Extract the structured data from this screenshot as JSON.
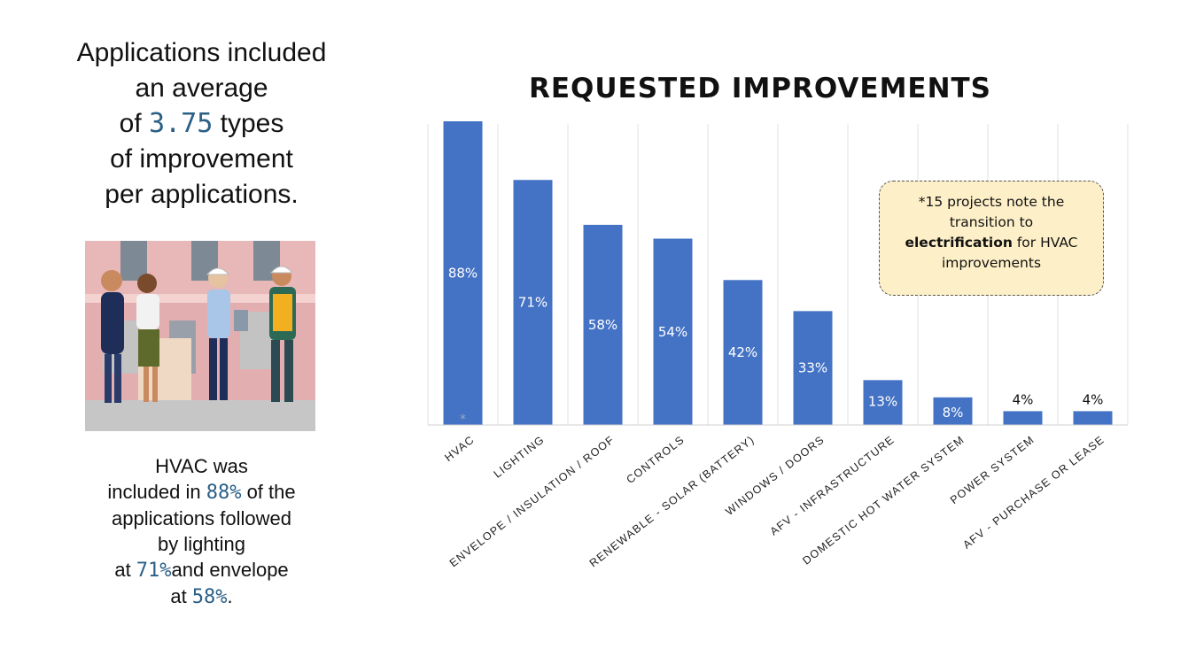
{
  "summary": {
    "line1": "Applications included",
    "line2": "an average",
    "line3_pre": "of ",
    "line3_value": "3.75",
    "line3_post": " types",
    "line4": "of improvement",
    "line5": "per applications."
  },
  "caption": {
    "line1": "HVAC was",
    "line2_pre": "included in ",
    "line2_value": "88%",
    "line2_post": " of the",
    "line3": "applications followed",
    "line4": "by lighting",
    "line5_pre": "at ",
    "line5_value": "71%",
    "line5_post": "and envelope",
    "line6_pre": "at ",
    "line6_value": "58%",
    "line6_post": "."
  },
  "callout": {
    "line1": "*15 projects note the",
    "line2": "transition to",
    "bold": "electrification",
    "line3_post": " for HVAC",
    "line4": "improvements"
  },
  "chart_data": {
    "type": "bar",
    "title": "REQUESTED IMPROVEMENTS",
    "categories": [
      "HVAC",
      "LIGHTING",
      "ENVELOPE / INSULATION / ROOF",
      "CONTROLS",
      "RENEWABLE - SOLAR (BATTERY)",
      "WINDOWS / DOORS",
      "AFV - INFRASTRUCTURE",
      "DOMESTIC HOT WATER SYSTEM",
      "POWER SYSTEM",
      "AFV - PURCHASE OR LEASE"
    ],
    "values": [
      88,
      71,
      58,
      54,
      42,
      33,
      13,
      8,
      4,
      4
    ],
    "labels": [
      "88%",
      "71%",
      "58%",
      "54%",
      "42%",
      "33%",
      "13%",
      "8%",
      "4%",
      "4%"
    ],
    "bar_color": "#4472c4",
    "asterisk_note": "*",
    "ylim": [
      0,
      100
    ],
    "grid": "vertical"
  }
}
